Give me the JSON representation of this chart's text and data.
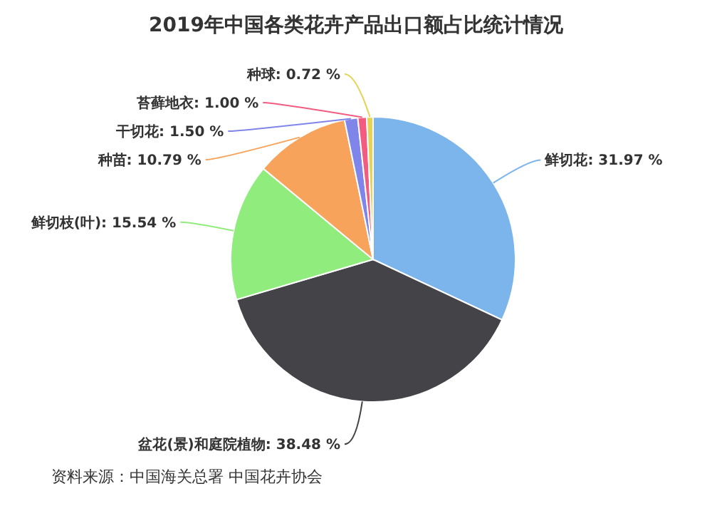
{
  "chart_data": {
    "type": "pie",
    "title": "2019年中国各类花卉产品出口额占比统计情况",
    "categories": [
      "鲜切花",
      "盆花(景)和庭院植物",
      "鲜切枝(叶)",
      "种苗",
      "干切花",
      "苔藓地衣",
      "种球"
    ],
    "values": [
      31.97,
      38.48,
      15.54,
      10.79,
      1.5,
      1.0,
      0.72
    ],
    "colors": [
      "#7cb5ec",
      "#434348",
      "#90ed7d",
      "#f7a35c",
      "#8085e9",
      "#f15c80",
      "#e4d354"
    ],
    "value_labels": [
      "31.97 %",
      "38.48 %",
      "15.54 %",
      "10.79 %",
      "1.50 %",
      "1.00 %",
      "0.72 %"
    ],
    "annotations": [
      "资料来源：中国海关总署 中国花卉协会"
    ]
  }
}
